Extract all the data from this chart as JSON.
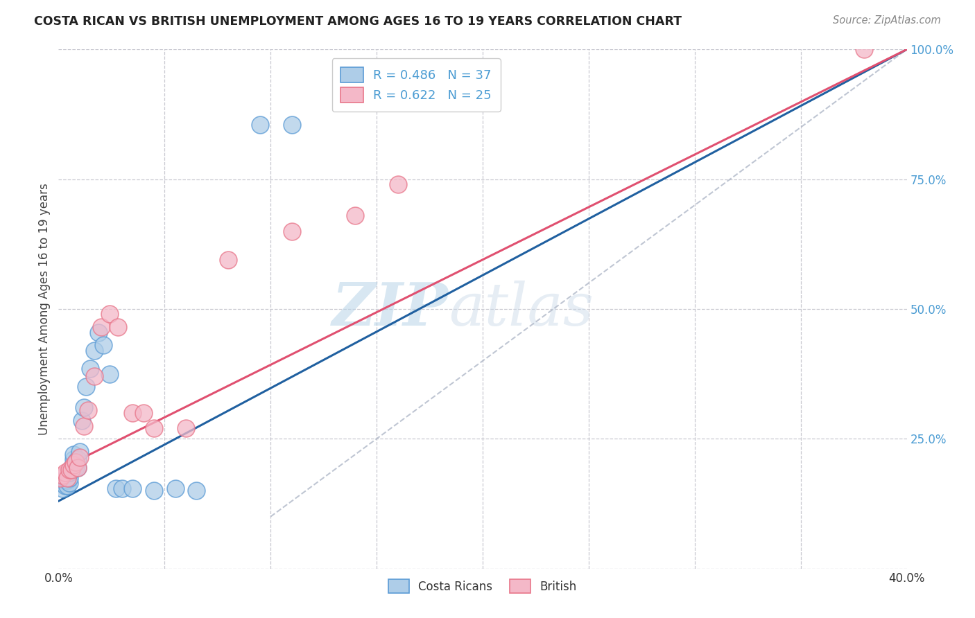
{
  "title": "COSTA RICAN VS BRITISH UNEMPLOYMENT AMONG AGES 16 TO 19 YEARS CORRELATION CHART",
  "source": "Source: ZipAtlas.com",
  "ylabel": "Unemployment Among Ages 16 to 19 years",
  "xlim": [
    0.0,
    0.4
  ],
  "ylim": [
    0.0,
    1.0
  ],
  "yticks": [
    0.0,
    0.25,
    0.5,
    0.75,
    1.0
  ],
  "yticklabels": [
    "",
    "25.0%",
    "50.0%",
    "75.0%",
    "100.0%"
  ],
  "xtick_positions": [
    0.0,
    0.4
  ],
  "xticklabels": [
    "0.0%",
    "40.0%"
  ],
  "blue_fill": "#aecde8",
  "blue_edge": "#5b9bd5",
  "pink_fill": "#f4b8c8",
  "pink_edge": "#e8768a",
  "blue_line_color": "#2060a0",
  "pink_line_color": "#e05070",
  "ref_line_color": "#b0b8c8",
  "legend_R_blue": "R = 0.486",
  "legend_N_blue": "N = 37",
  "legend_R_pink": "R = 0.622",
  "legend_N_pink": "N = 25",
  "watermark_zip": "ZIP",
  "watermark_atlas": "atlas",
  "background_color": "#ffffff",
  "grid_color": "#c8c8d0",
  "tick_label_color_y": "#4b9cd3",
  "tick_label_color_x": "#333333",
  "cr_x": [
    0.001,
    0.002,
    0.002,
    0.003,
    0.003,
    0.003,
    0.004,
    0.004,
    0.005,
    0.005,
    0.005,
    0.006,
    0.006,
    0.007,
    0.007,
    0.007,
    0.008,
    0.008,
    0.009,
    0.009,
    0.01,
    0.011,
    0.012,
    0.013,
    0.015,
    0.017,
    0.019,
    0.021,
    0.024,
    0.027,
    0.03,
    0.035,
    0.045,
    0.055,
    0.065,
    0.095,
    0.11
  ],
  "cr_y": [
    0.165,
    0.155,
    0.17,
    0.16,
    0.17,
    0.175,
    0.16,
    0.17,
    0.165,
    0.175,
    0.185,
    0.19,
    0.195,
    0.2,
    0.21,
    0.22,
    0.195,
    0.205,
    0.195,
    0.21,
    0.225,
    0.285,
    0.31,
    0.35,
    0.385,
    0.42,
    0.455,
    0.43,
    0.375,
    0.155,
    0.155,
    0.155,
    0.15,
    0.155,
    0.15,
    0.855,
    0.855
  ],
  "br_x": [
    0.001,
    0.002,
    0.003,
    0.004,
    0.005,
    0.006,
    0.007,
    0.008,
    0.009,
    0.01,
    0.012,
    0.014,
    0.017,
    0.02,
    0.024,
    0.028,
    0.035,
    0.04,
    0.045,
    0.06,
    0.08,
    0.11,
    0.14,
    0.16,
    0.38
  ],
  "br_y": [
    0.175,
    0.18,
    0.185,
    0.175,
    0.19,
    0.19,
    0.2,
    0.205,
    0.195,
    0.215,
    0.275,
    0.305,
    0.37,
    0.465,
    0.49,
    0.465,
    0.3,
    0.3,
    0.27,
    0.27,
    0.595,
    0.65,
    0.68,
    0.74,
    1.0
  ],
  "blue_line_x0": 0.0,
  "blue_line_y0": 0.13,
  "blue_line_x1": 0.4,
  "blue_line_y1": 1.0,
  "pink_line_x0": 0.0,
  "pink_line_y0": 0.19,
  "pink_line_x1": 0.4,
  "pink_line_y1": 1.0,
  "ref_line_x0": 0.1,
  "ref_line_y0": 0.1,
  "ref_line_x1": 0.4,
  "ref_line_y1": 1.0
}
